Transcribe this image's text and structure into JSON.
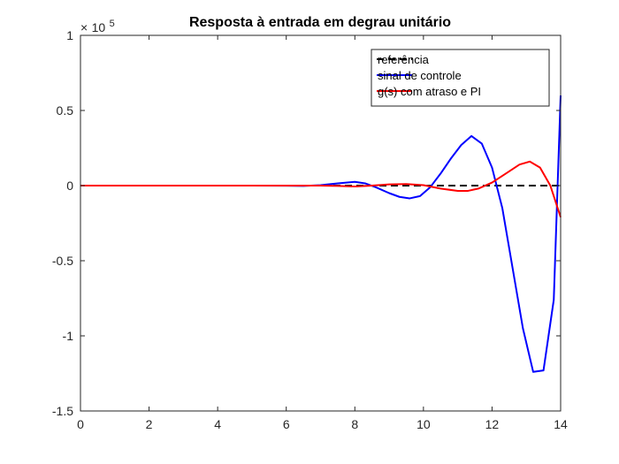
{
  "chart_data": {
    "type": "line",
    "title": "Resposta à entrada em degrau unitário",
    "xlabel": "",
    "ylabel": "",
    "exponent": {
      "base": "10",
      "power": "5",
      "times": "×"
    },
    "xlim": [
      0,
      14
    ],
    "ylim": [
      -1.5,
      1
    ],
    "xticks": [
      0,
      2,
      4,
      6,
      8,
      10,
      12,
      14
    ],
    "xtick_labels": [
      "0",
      "2",
      "4",
      "6",
      "8",
      "10",
      "12",
      "14"
    ],
    "yticks": [
      1,
      0.5,
      0,
      -0.5,
      -1,
      -1.5
    ],
    "ytick_labels": [
      "1",
      "0.5",
      "0",
      "-0.5",
      "-1",
      "-1.5"
    ],
    "grid": false,
    "legend_position": "top-right",
    "series": [
      {
        "name": "referência",
        "color": "#000000",
        "dash": "dashed",
        "x": [
          0,
          14
        ],
        "y": [
          0,
          0
        ]
      },
      {
        "name": "sinal de controle",
        "color": "#0000ff",
        "dash": "solid",
        "x": [
          0,
          1,
          2,
          3,
          4,
          5,
          6,
          6.5,
          7,
          7.5,
          8,
          8.3,
          8.6,
          9,
          9.3,
          9.6,
          9.9,
          10.2,
          10.5,
          10.8,
          11.1,
          11.4,
          11.7,
          12,
          12.3,
          12.6,
          12.9,
          13.2,
          13.5,
          13.8,
          14
        ],
        "y": [
          0,
          0,
          0,
          0,
          0,
          0,
          -0.001,
          -0.002,
          0.003,
          0.015,
          0.025,
          0.015,
          -0.01,
          -0.05,
          -0.075,
          -0.085,
          -0.07,
          -0.01,
          0.08,
          0.18,
          0.27,
          0.33,
          0.28,
          0.12,
          -0.15,
          -0.55,
          -0.95,
          -1.24,
          -1.23,
          -0.76,
          0.6
        ]
      },
      {
        "name": "g(s) com atraso e PI",
        "color": "#ff0000",
        "dash": "solid",
        "x": [
          0,
          1,
          2,
          3,
          4,
          5,
          6,
          7,
          7.5,
          8,
          8.5,
          9,
          9.5,
          10,
          10.5,
          11,
          11.3,
          11.6,
          12,
          12.4,
          12.8,
          13.1,
          13.4,
          13.7,
          14
        ],
        "y": [
          0,
          0,
          0,
          0,
          0,
          0,
          0,
          0,
          -0.002,
          -0.006,
          0,
          0.008,
          0.01,
          0.003,
          -0.02,
          -0.035,
          -0.035,
          -0.02,
          0.02,
          0.08,
          0.14,
          0.16,
          0.12,
          0,
          -0.21
        ]
      }
    ]
  }
}
